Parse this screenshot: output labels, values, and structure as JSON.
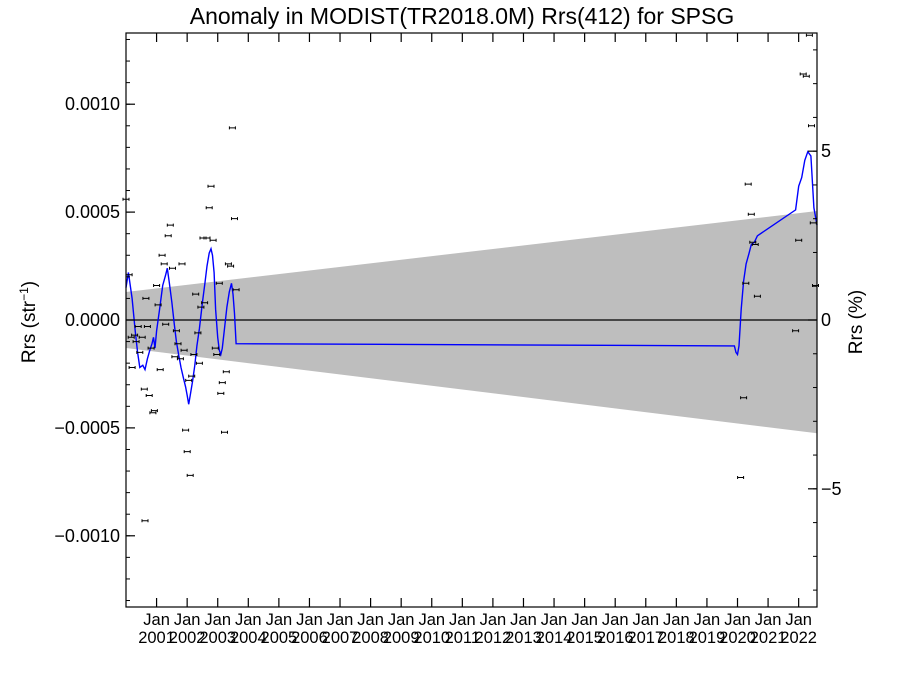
{
  "chart_data": {
    "type": "scatter",
    "title": "Anomaly in MODIST(TR2018.0M) Rrs(412) for SPSG",
    "ylabel_left": {
      "base": "Rrs (str",
      "sup": "−1",
      "close": ")"
    },
    "ylabel_right": "Rrs (%)",
    "ylim_left": [
      -0.00133,
      0.00133
    ],
    "ylim_right": [
      -8.5,
      8.5
    ],
    "xlim": [
      2000.0,
      2022.6
    ],
    "left_ticks": [
      {
        "value": 0.001,
        "label": "0.0010"
      },
      {
        "value": 0.0005,
        "label": "0.0005"
      },
      {
        "value": 0.0,
        "label": "0.0000"
      },
      {
        "value": -0.0005,
        "label": "−0.0005"
      },
      {
        "value": -0.001,
        "label": "−0.0010"
      }
    ],
    "right_ticks": [
      {
        "value": 5,
        "label": "5"
      },
      {
        "value": 0,
        "label": "0"
      },
      {
        "value": -5,
        "label": "−5"
      }
    ],
    "x_ticks": [
      {
        "value": 2001,
        "month": "Jan",
        "year": "2001"
      },
      {
        "value": 2002,
        "month": "Jan",
        "year": "2002"
      },
      {
        "value": 2003,
        "month": "Jan",
        "year": "2003"
      },
      {
        "value": 2004,
        "month": "Jan",
        "year": "2004"
      },
      {
        "value": 2005,
        "month": "Jan",
        "year": "2005"
      },
      {
        "value": 2006,
        "month": "Jan",
        "year": "2006"
      },
      {
        "value": 2007,
        "month": "Jan",
        "year": "2007"
      },
      {
        "value": 2008,
        "month": "Jan",
        "year": "2008"
      },
      {
        "value": 2009,
        "month": "Jan",
        "year": "2009"
      },
      {
        "value": 2010,
        "month": "Jan",
        "year": "2010"
      },
      {
        "value": 2011,
        "month": "Jan",
        "year": "2011"
      },
      {
        "value": 2012,
        "month": "Jan",
        "year": "2012"
      },
      {
        "value": 2013,
        "month": "Jan",
        "year": "2013"
      },
      {
        "value": 2014,
        "month": "Jan",
        "year": "2014"
      },
      {
        "value": 2015,
        "month": "Jan",
        "year": "2015"
      },
      {
        "value": 2016,
        "month": "Jan",
        "year": "2016"
      },
      {
        "value": 2017,
        "month": "Jan",
        "year": "2017"
      },
      {
        "value": 2018,
        "month": "Jan",
        "year": "2018"
      },
      {
        "value": 2019,
        "month": "Jan",
        "year": "2019"
      },
      {
        "value": 2020,
        "month": "Jan",
        "year": "2020"
      },
      {
        "value": 2021,
        "month": "Jan",
        "year": "2021"
      },
      {
        "value": 2022,
        "month": "Jan",
        "year": "2022"
      }
    ],
    "uncertainty_band": {
      "x": [
        2000.0,
        2022.6
      ],
      "upper": [
        0.00013,
        0.000505
      ],
      "lower": [
        -0.00013,
        -0.000525
      ],
      "color": "#bebebe"
    },
    "colors": {
      "points": "#000000",
      "line": "#0000ff",
      "zero_line": "#000000"
    },
    "points": [
      [
        2000.0,
        0.00056
      ],
      [
        2000.1,
        0.00021
      ],
      [
        2000.17,
        -8e-05
      ],
      [
        2000.2,
        -0.00022
      ],
      [
        2000.28,
        -7e-05
      ],
      [
        2000.33,
        -0.0001
      ],
      [
        2000.4,
        -3e-05
      ],
      [
        2000.45,
        -0.00015
      ],
      [
        2000.53,
        -8e-05
      ],
      [
        2000.6,
        -0.00032
      ],
      [
        2000.65,
        0.0001
      ],
      [
        2000.7,
        -3e-05
      ],
      [
        2000.76,
        -0.00035
      ],
      [
        2000.82,
        -0.00013
      ],
      [
        2000.88,
        -0.00043
      ],
      [
        2000.93,
        -0.00042
      ],
      [
        2001.0,
        0.00016
      ],
      [
        2001.05,
        7e-05
      ],
      [
        2001.12,
        -0.00023
      ],
      [
        2001.18,
        0.0003
      ],
      [
        2001.25,
        0.00026
      ],
      [
        2001.3,
        -2e-05
      ],
      [
        2001.38,
        0.00039
      ],
      [
        2001.45,
        0.00044
      ],
      [
        2001.52,
        0.00024
      ],
      [
        2001.6,
        -0.00017
      ],
      [
        2001.65,
        -5e-05
      ],
      [
        2001.7,
        -0.00011
      ],
      [
        2001.78,
        -0.00018
      ],
      [
        2001.83,
        0.00026
      ],
      [
        2001.9,
        -0.00014
      ],
      [
        2001.95,
        -0.00051
      ],
      [
        2002.0,
        -0.00061
      ],
      [
        2002.05,
        -0.00028
      ],
      [
        2002.1,
        -0.00072
      ],
      [
        2002.15,
        -0.00026
      ],
      [
        2002.22,
        -0.00016
      ],
      [
        2002.28,
        0.00012
      ],
      [
        2002.35,
        -6e-05
      ],
      [
        2002.4,
        -0.0002
      ],
      [
        2002.45,
        6e-05
      ],
      [
        2002.52,
        0.00038
      ],
      [
        2002.57,
        8e-05
      ],
      [
        2002.65,
        0.00038
      ],
      [
        2002.72,
        0.00052
      ],
      [
        2002.78,
        0.00062
      ],
      [
        2002.85,
        0.00037
      ],
      [
        2002.92,
        -0.00013
      ],
      [
        2002.97,
        -0.00016
      ],
      [
        2003.05,
        0.00017
      ],
      [
        2003.1,
        -0.00034
      ],
      [
        2003.15,
        -0.00029
      ],
      [
        2003.22,
        -0.00052
      ],
      [
        2003.28,
        -0.00024
      ],
      [
        2003.35,
        0.00026
      ],
      [
        2003.42,
        0.00025
      ],
      [
        2003.48,
        0.00089
      ],
      [
        2003.55,
        0.00047
      ],
      [
        2003.6,
        0.00014
      ],
      [
        2000.62,
        -0.00093
      ],
      [
        2020.1,
        -0.00073
      ],
      [
        2020.2,
        -0.00036
      ],
      [
        2020.27,
        0.00017
      ],
      [
        2020.35,
        0.00063
      ],
      [
        2020.45,
        0.00049
      ],
      [
        2020.5,
        0.00036
      ],
      [
        2020.58,
        0.00035
      ],
      [
        2020.65,
        0.00011
      ],
      [
        2021.9,
        -5e-05
      ],
      [
        2022.0,
        0.00037
      ],
      [
        2022.15,
        0.00114
      ],
      [
        2022.25,
        0.00113
      ],
      [
        2022.35,
        0.00132
      ],
      [
        2022.42,
        0.0009
      ],
      [
        2022.48,
        0.00045
      ],
      [
        2022.55,
        0.00016
      ]
    ],
    "line": [
      [
        2000.0,
        0.00015
      ],
      [
        2000.08,
        0.00022
      ],
      [
        2000.2,
        0.0001
      ],
      [
        2000.3,
        -5e-05
      ],
      [
        2000.38,
        -0.00015
      ],
      [
        2000.45,
        -0.00022
      ],
      [
        2000.55,
        -0.00021
      ],
      [
        2000.62,
        -0.00023
      ],
      [
        2000.7,
        -0.00018
      ],
      [
        2000.78,
        -0.00014
      ],
      [
        2000.85,
        -0.00011
      ],
      [
        2000.9,
        -8e-05
      ],
      [
        2000.95,
        -0.00013
      ],
      [
        2001.0,
        -5e-05
      ],
      [
        2001.1,
        5e-05
      ],
      [
        2001.2,
        0.00016
      ],
      [
        2001.3,
        0.00021
      ],
      [
        2001.35,
        0.00024
      ],
      [
        2001.42,
        0.00017
      ],
      [
        2001.5,
        8e-05
      ],
      [
        2001.58,
        -2e-05
      ],
      [
        2001.65,
        -0.0001
      ],
      [
        2001.72,
        -0.00016
      ],
      [
        2001.8,
        -0.00022
      ],
      [
        2001.88,
        -0.00027
      ],
      [
        2001.95,
        -0.00031
      ],
      [
        2002.0,
        -0.00035
      ],
      [
        2002.05,
        -0.00039
      ],
      [
        2002.1,
        -0.00035
      ],
      [
        2002.18,
        -0.00028
      ],
      [
        2002.25,
        -0.00021
      ],
      [
        2002.32,
        -0.00012
      ],
      [
        2002.4,
        -4e-05
      ],
      [
        2002.5,
        8e-05
      ],
      [
        2002.58,
        0.00017
      ],
      [
        2002.65,
        0.00025
      ],
      [
        2002.72,
        0.00031
      ],
      [
        2002.78,
        0.00033
      ],
      [
        2002.83,
        0.0003
      ],
      [
        2002.88,
        0.00022
      ],
      [
        2002.93,
        5e-05
      ],
      [
        2003.0,
        -8e-05
      ],
      [
        2003.05,
        -0.00014
      ],
      [
        2003.1,
        -0.00016
      ],
      [
        2003.15,
        -0.00013
      ],
      [
        2003.22,
        -4e-05
      ],
      [
        2003.3,
        6e-05
      ],
      [
        2003.38,
        0.00013
      ],
      [
        2003.45,
        0.00017
      ],
      [
        2003.5,
        0.00012
      ],
      [
        2003.55,
        3e-05
      ],
      [
        2003.6,
        -0.00011
      ],
      [
        2019.9,
        -0.00012
      ],
      [
        2019.95,
        -0.00015
      ],
      [
        2020.0,
        -0.00016
      ],
      [
        2020.05,
        -0.00012
      ],
      [
        2020.12,
        5e-05
      ],
      [
        2020.2,
        0.00018
      ],
      [
        2020.28,
        0.00026
      ],
      [
        2020.38,
        0.00031
      ],
      [
        2020.45,
        0.00035
      ],
      [
        2020.55,
        0.00036
      ],
      [
        2020.65,
        0.00039
      ],
      [
        2021.9,
        0.00051
      ],
      [
        2022.0,
        0.00062
      ],
      [
        2022.1,
        0.00066
      ],
      [
        2022.2,
        0.00074
      ],
      [
        2022.3,
        0.00078
      ],
      [
        2022.4,
        0.00076
      ],
      [
        2022.5,
        0.00052
      ],
      [
        2022.6,
        0.00044
      ]
    ]
  }
}
